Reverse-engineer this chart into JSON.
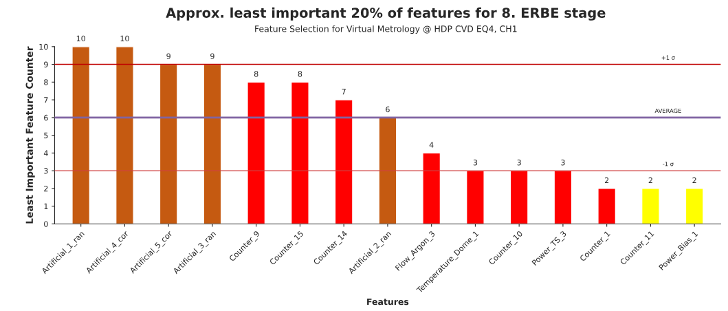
{
  "chart_data": {
    "type": "bar",
    "title": "Approx. least important 20% of features for 8. ERBE stage",
    "subtitle": "Feature Selection for Virtual Metrology @ HDP CVD EQ4, CH1",
    "xlabel": "Features",
    "ylabel": "Least Important Feature Counter",
    "categories": [
      "Artificial_1_ran",
      "Artificial_4_cor",
      "Artificial_5_cor",
      "Artificial_3_ran",
      "Counter_9",
      "Counter_15",
      "Counter_14",
      "Artificial_2_ran",
      "Flow_Argon_3",
      "Temperature_Dome_1",
      "Counter_10",
      "Power_TS_3",
      "Counter_1",
      "Counter_11",
      "Power_Bias_1"
    ],
    "values": [
      10,
      10,
      9,
      9,
      8,
      8,
      7,
      6,
      4,
      3,
      3,
      3,
      2,
      2,
      2
    ],
    "colors": [
      "#c55a11",
      "#c55a11",
      "#c55a11",
      "#c55a11",
      "#ff0000",
      "#ff0000",
      "#ff0000",
      "#c55a11",
      "#ff0000",
      "#ff0000",
      "#ff0000",
      "#ff0000",
      "#ff0000",
      "#ffff00",
      "#ffff00"
    ],
    "ylim": [
      0,
      10
    ],
    "yticks": [
      0,
      1,
      2,
      3,
      4,
      5,
      6,
      7,
      8,
      9,
      10
    ],
    "data_labels": true,
    "grid": false,
    "ref_lines": [
      {
        "axis": "y",
        "value": 9,
        "label": "+1 σ",
        "color": "#c00000"
      },
      {
        "axis": "y",
        "value": 6,
        "label": "AVERAGE",
        "color": "#8064a2"
      },
      {
        "axis": "y",
        "value": 3,
        "label": "-1 σ",
        "color": "#d04040"
      }
    ]
  }
}
